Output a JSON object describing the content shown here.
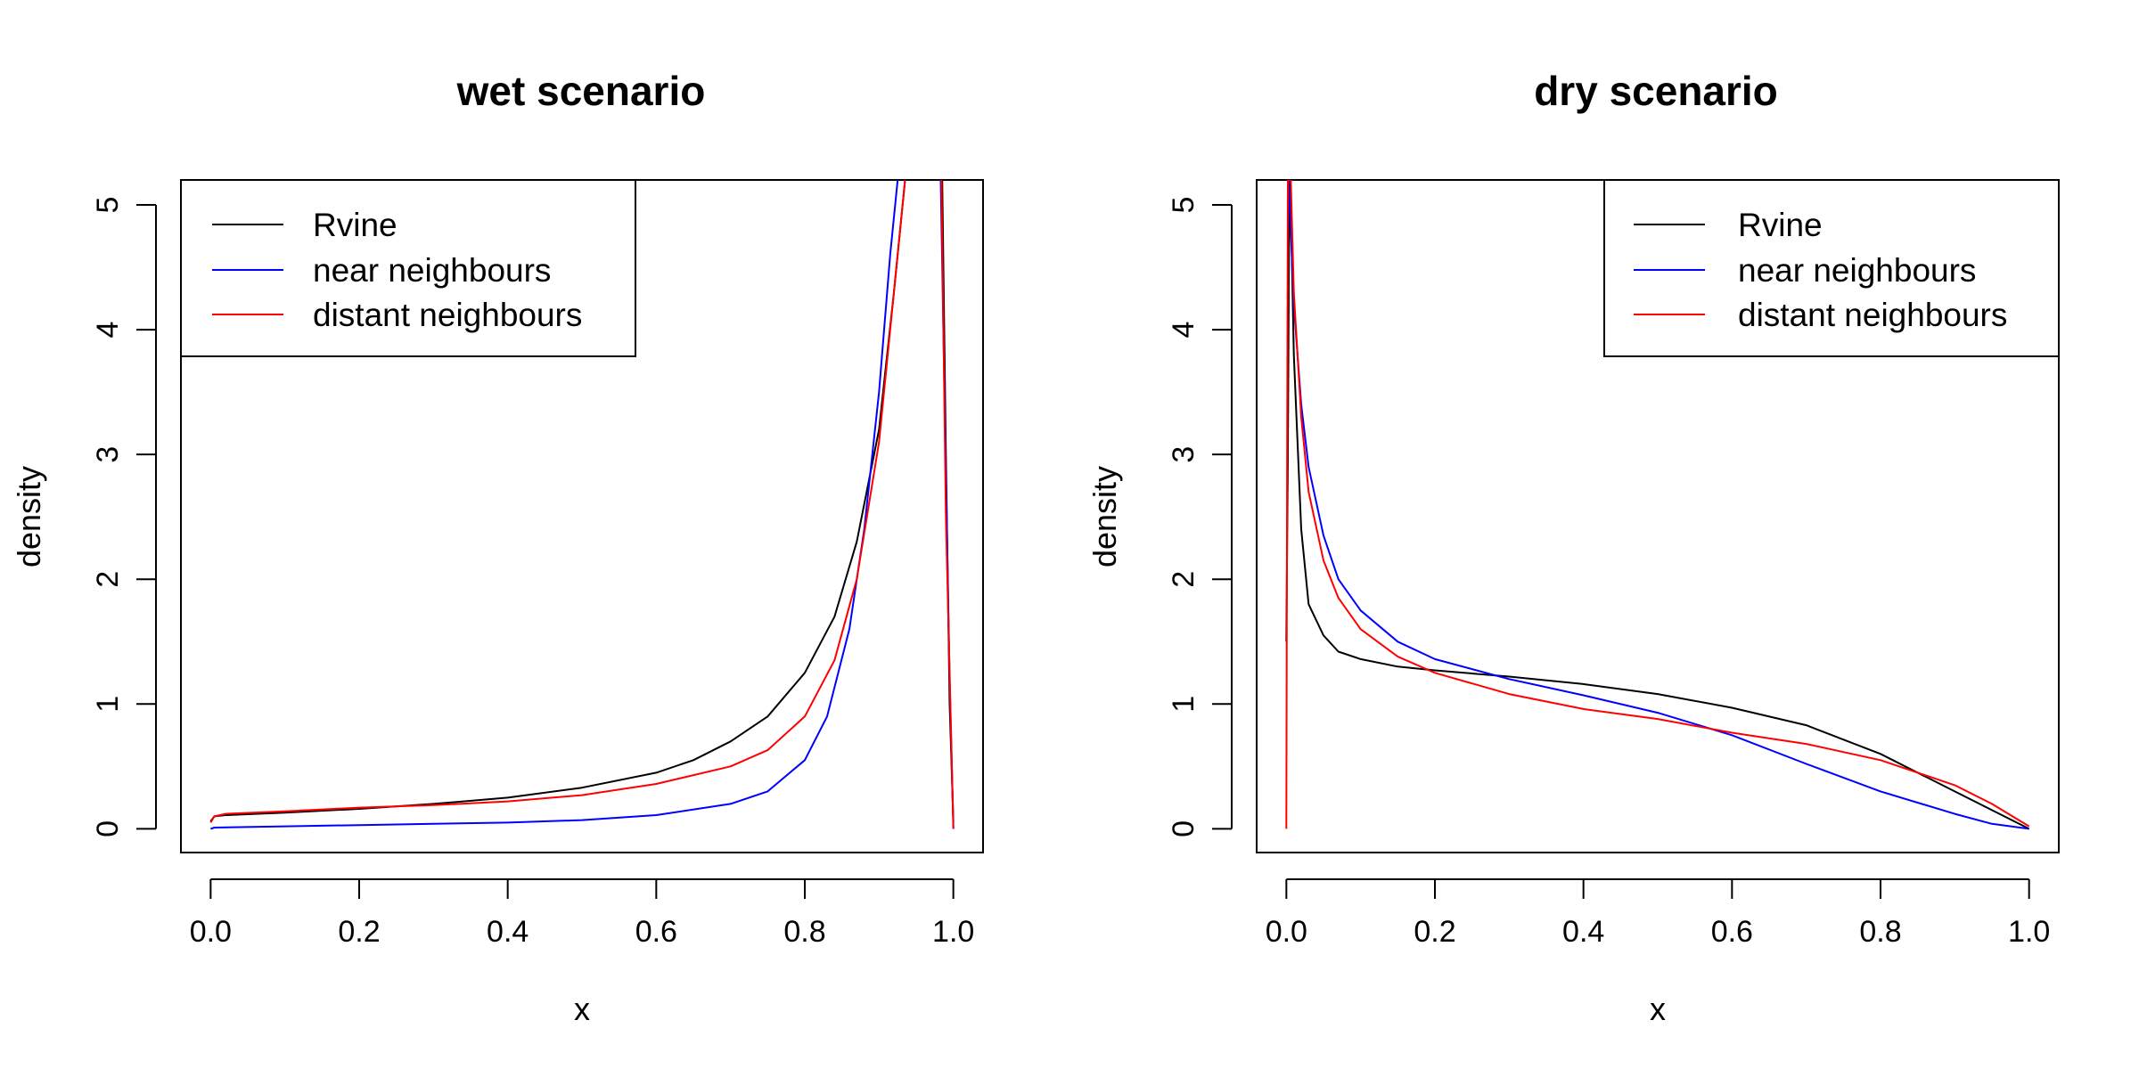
{
  "chart_data": [
    {
      "type": "line",
      "title": "wet scenario",
      "xlabel": "x",
      "ylabel": "density",
      "xlim": [
        -0.04,
        1.04
      ],
      "ylim": [
        -0.19,
        5.2
      ],
      "xticks": [
        "0.0",
        "0.2",
        "0.4",
        "0.6",
        "0.8",
        "1.0"
      ],
      "yticks": [
        "0",
        "1",
        "2",
        "3",
        "4",
        "5"
      ],
      "legend_position": "top-left",
      "series": [
        {
          "name": "Rvine",
          "color": "#000000",
          "points": [
            [
              0.0,
              0.06
            ],
            [
              0.005,
              0.1
            ],
            [
              0.02,
              0.11
            ],
            [
              0.1,
              0.13
            ],
            [
              0.2,
              0.16
            ],
            [
              0.3,
              0.2
            ],
            [
              0.4,
              0.25
            ],
            [
              0.5,
              0.33
            ],
            [
              0.6,
              0.45
            ],
            [
              0.65,
              0.55
            ],
            [
              0.7,
              0.7
            ],
            [
              0.75,
              0.9
            ],
            [
              0.8,
              1.25
            ],
            [
              0.84,
              1.7
            ],
            [
              0.87,
              2.3
            ],
            [
              0.9,
              3.2
            ],
            [
              0.92,
              4.3
            ],
            [
              0.935,
              5.2
            ],
            [
              null,
              null
            ],
            [
              0.985,
              5.2
            ],
            [
              0.99,
              3.0
            ],
            [
              0.995,
              1.0
            ],
            [
              1.0,
              0.05
            ]
          ]
        },
        {
          "name": "near neighbours",
          "color": "#0000ff",
          "points": [
            [
              0.0,
              0.0
            ],
            [
              0.005,
              0.01
            ],
            [
              0.1,
              0.02
            ],
            [
              0.2,
              0.03
            ],
            [
              0.3,
              0.04
            ],
            [
              0.4,
              0.05
            ],
            [
              0.5,
              0.07
            ],
            [
              0.6,
              0.11
            ],
            [
              0.7,
              0.2
            ],
            [
              0.75,
              0.3
            ],
            [
              0.8,
              0.55
            ],
            [
              0.83,
              0.9
            ],
            [
              0.86,
              1.6
            ],
            [
              0.88,
              2.4
            ],
            [
              0.9,
              3.5
            ],
            [
              0.915,
              4.6
            ],
            [
              0.925,
              5.2
            ],
            [
              null,
              null
            ],
            [
              0.983,
              5.2
            ],
            [
              0.988,
              3.5
            ],
            [
              0.995,
              1.2
            ],
            [
              1.0,
              0.0
            ]
          ]
        },
        {
          "name": "distant neighbours",
          "color": "#ff0000",
          "points": [
            [
              0.0,
              0.05
            ],
            [
              0.005,
              0.1
            ],
            [
              0.02,
              0.12
            ],
            [
              0.1,
              0.14
            ],
            [
              0.2,
              0.17
            ],
            [
              0.3,
              0.19
            ],
            [
              0.4,
              0.22
            ],
            [
              0.5,
              0.27
            ],
            [
              0.6,
              0.36
            ],
            [
              0.7,
              0.5
            ],
            [
              0.75,
              0.63
            ],
            [
              0.8,
              0.9
            ],
            [
              0.84,
              1.35
            ],
            [
              0.87,
              2.0
            ],
            [
              0.9,
              3.1
            ],
            [
              0.92,
              4.3
            ],
            [
              0.935,
              5.2
            ],
            [
              null,
              null
            ],
            [
              0.984,
              5.2
            ],
            [
              0.99,
              2.5
            ],
            [
              1.0,
              0.0
            ]
          ]
        }
      ]
    },
    {
      "type": "line",
      "title": "dry scenario",
      "xlabel": "x",
      "ylabel": "density",
      "xlim": [
        -0.04,
        1.04
      ],
      "ylim": [
        -0.19,
        5.2
      ],
      "xticks": [
        "0.0",
        "0.2",
        "0.4",
        "0.6",
        "0.8",
        "1.0"
      ],
      "yticks": [
        "0",
        "1",
        "2",
        "3",
        "4",
        "5"
      ],
      "legend_position": "top-right",
      "series": [
        {
          "name": "Rvine",
          "color": "#000000",
          "points": [
            [
              0.0,
              1.5
            ],
            [
              0.002,
              3.0
            ],
            [
              0.004,
              5.2
            ],
            [
              0.006,
              5.0
            ],
            [
              0.01,
              3.8
            ],
            [
              0.02,
              2.4
            ],
            [
              0.03,
              1.8
            ],
            [
              0.05,
              1.55
            ],
            [
              0.07,
              1.42
            ],
            [
              0.1,
              1.36
            ],
            [
              0.15,
              1.3
            ],
            [
              0.2,
              1.27
            ],
            [
              0.3,
              1.22
            ],
            [
              0.4,
              1.16
            ],
            [
              0.5,
              1.08
            ],
            [
              0.6,
              0.97
            ],
            [
              0.7,
              0.83
            ],
            [
              0.8,
              0.6
            ],
            [
              0.9,
              0.3
            ],
            [
              0.95,
              0.15
            ],
            [
              1.0,
              0.0
            ]
          ]
        },
        {
          "name": "near neighbours",
          "color": "#0000ff",
          "points": [
            [
              0.003,
              5.2
            ],
            [
              0.01,
              4.2
            ],
            [
              0.02,
              3.4
            ],
            [
              0.03,
              2.9
            ],
            [
              0.05,
              2.35
            ],
            [
              0.07,
              2.0
            ],
            [
              0.1,
              1.75
            ],
            [
              0.15,
              1.5
            ],
            [
              0.2,
              1.36
            ],
            [
              0.3,
              1.2
            ],
            [
              0.4,
              1.07
            ],
            [
              0.5,
              0.93
            ],
            [
              0.6,
              0.75
            ],
            [
              0.7,
              0.52
            ],
            [
              0.8,
              0.3
            ],
            [
              0.9,
              0.12
            ],
            [
              0.95,
              0.04
            ],
            [
              1.0,
              0.0
            ]
          ]
        },
        {
          "name": "distant neighbours",
          "color": "#ff0000",
          "points": [
            [
              0.0,
              0.0
            ],
            [
              0.001,
              3.0
            ],
            [
              0.002,
              5.2
            ],
            [
              0.006,
              5.2
            ],
            [
              0.01,
              4.3
            ],
            [
              0.02,
              3.3
            ],
            [
              0.03,
              2.7
            ],
            [
              0.05,
              2.15
            ],
            [
              0.07,
              1.85
            ],
            [
              0.1,
              1.6
            ],
            [
              0.15,
              1.38
            ],
            [
              0.2,
              1.25
            ],
            [
              0.3,
              1.08
            ],
            [
              0.4,
              0.96
            ],
            [
              0.5,
              0.88
            ],
            [
              0.6,
              0.77
            ],
            [
              0.7,
              0.68
            ],
            [
              0.8,
              0.55
            ],
            [
              0.9,
              0.35
            ],
            [
              0.95,
              0.2
            ],
            [
              1.0,
              0.02
            ]
          ]
        }
      ]
    }
  ]
}
